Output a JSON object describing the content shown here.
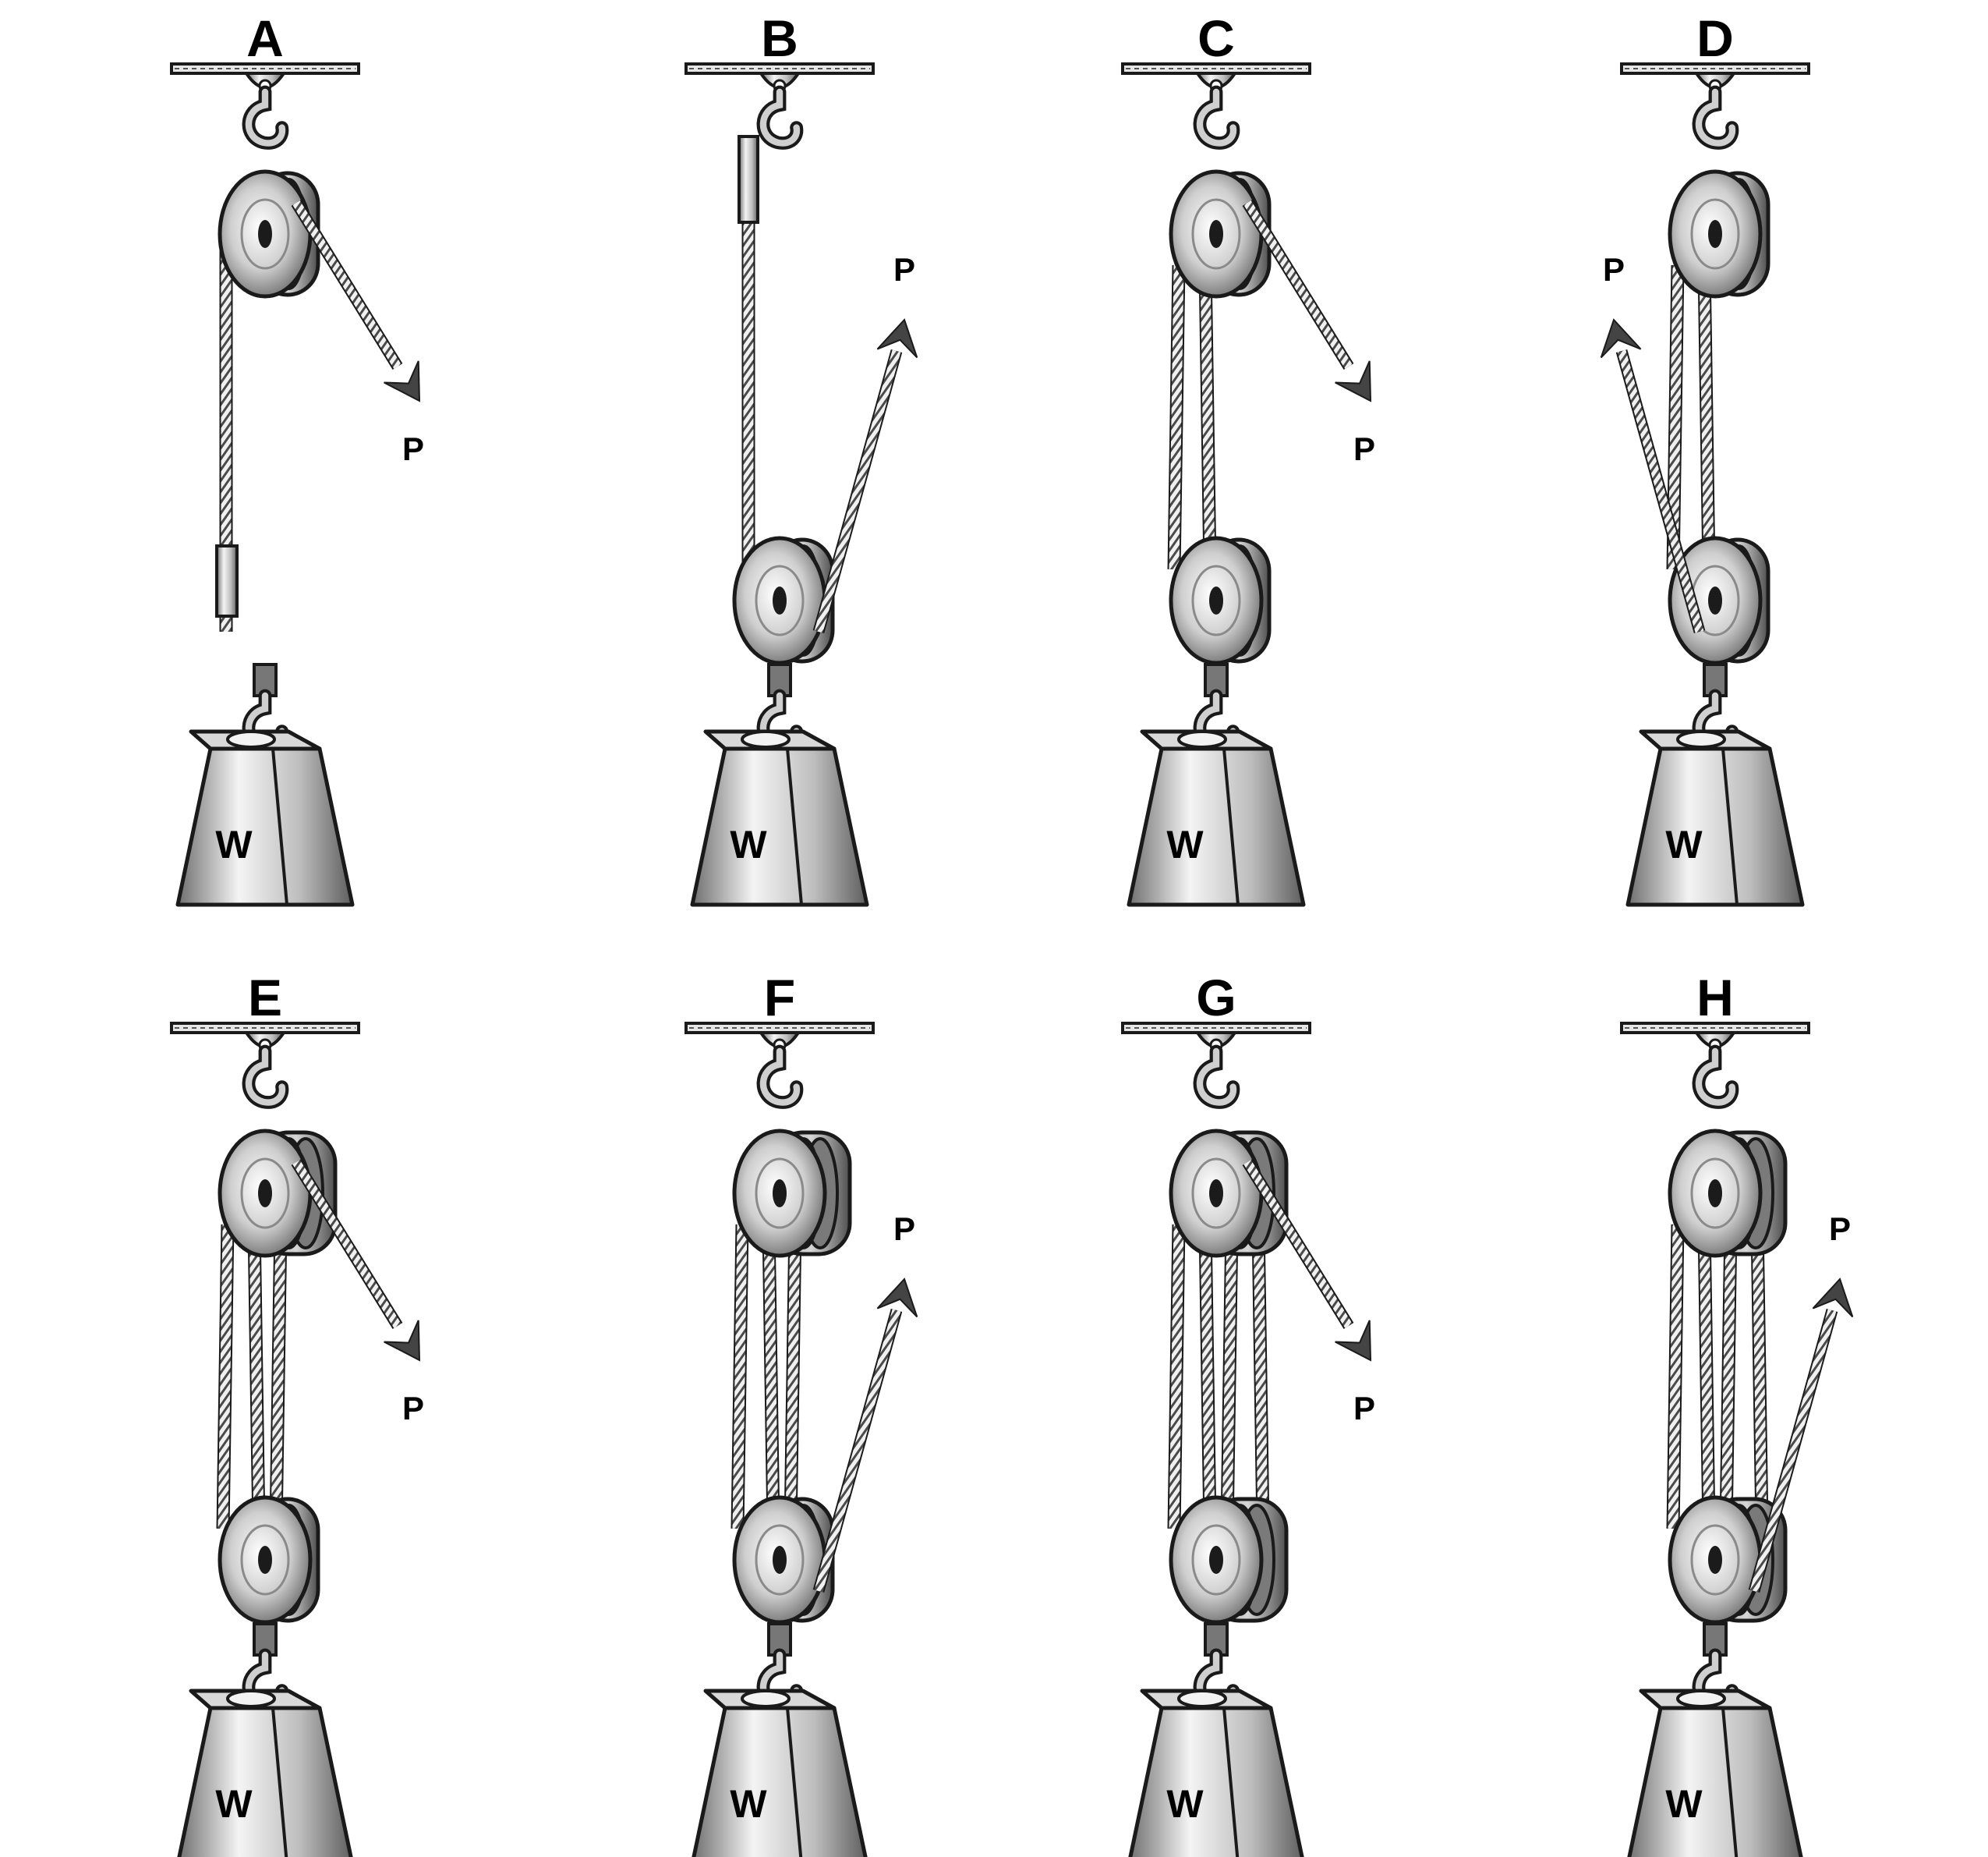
{
  "figure": {
    "force_label": "P",
    "weight_label": "W",
    "colors": {
      "ink": "#1a1a1a",
      "rope": "#555555",
      "metal_light": "#e8e8e8",
      "metal_dark": "#6a6a6a",
      "arrow": "#444444"
    }
  },
  "panels": [
    {
      "label": "A",
      "pull": "down",
      "top_sheaves": 1,
      "bottom_sheaves": 0,
      "pull_from": "top"
    },
    {
      "label": "B",
      "pull": "up",
      "top_sheaves": 0,
      "bottom_sheaves": 1,
      "pull_from": "bottom"
    },
    {
      "label": "C",
      "pull": "down",
      "top_sheaves": 1,
      "bottom_sheaves": 1,
      "pull_from": "top"
    },
    {
      "label": "D",
      "pull": "up",
      "top_sheaves": 1,
      "bottom_sheaves": 1,
      "pull_from": "bottom"
    },
    {
      "label": "E",
      "pull": "down",
      "top_sheaves": 2,
      "bottom_sheaves": 1,
      "pull_from": "top"
    },
    {
      "label": "F",
      "pull": "up",
      "top_sheaves": 2,
      "bottom_sheaves": 1,
      "pull_from": "bottom"
    },
    {
      "label": "G",
      "pull": "down",
      "top_sheaves": 2,
      "bottom_sheaves": 2,
      "pull_from": "top"
    },
    {
      "label": "H",
      "pull": "up",
      "top_sheaves": 2,
      "bottom_sheaves": 2,
      "pull_from": "bottom"
    }
  ]
}
